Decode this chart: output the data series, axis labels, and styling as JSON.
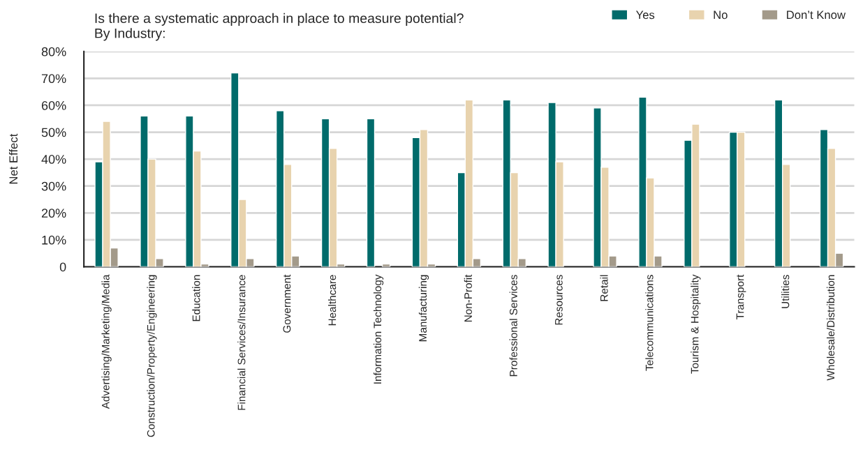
{
  "chart_data": {
    "type": "bar",
    "title": "Is there a systematic approach in place to measure potential?",
    "subtitle": "By Industry:",
    "ylabel": "Net Effect",
    "categories": [
      "Advertising/Marketing/Media",
      "Construction/Property/Engineering",
      "Education",
      "Financial Services/Insurance",
      "Government",
      "Healthcare",
      "Information Technology",
      "Manufacturing",
      "Non-Profit",
      "Professional Services",
      "Resources",
      "Retail",
      "Telecommunications",
      "Tourism & Hospitality",
      "Transport",
      "Utilities",
      "Wholesale/Distribution"
    ],
    "series": [
      {
        "name": "Yes",
        "color": "#006b6b",
        "values": [
          39,
          56,
          56,
          72,
          58,
          55,
          55,
          48,
          35,
          62,
          61,
          59,
          63,
          47,
          50,
          62,
          51
        ]
      },
      {
        "name": "No",
        "color": "#e8d3ae",
        "values": [
          54,
          40,
          43,
          25,
          38,
          44,
          null,
          51,
          62,
          35,
          39,
          37,
          33,
          53,
          50,
          38,
          44
        ]
      },
      {
        "name": "Don’t Know",
        "color": "#a39a8a",
        "values": [
          7,
          3,
          1,
          3,
          4,
          1,
          1,
          1,
          3,
          3,
          null,
          4,
          4,
          null,
          null,
          null,
          5
        ]
      }
    ],
    "ylim": [
      0,
      80
    ],
    "yticks": [
      {
        "value": 0,
        "label": "0"
      },
      {
        "value": 10,
        "label": "10%"
      },
      {
        "value": 20,
        "label": "20%"
      },
      {
        "value": 30,
        "label": "30%"
      },
      {
        "value": 40,
        "label": "40%"
      },
      {
        "value": 50,
        "label": "50%"
      },
      {
        "value": 60,
        "label": "60%"
      },
      {
        "value": 70,
        "label": "70%"
      },
      {
        "value": 80,
        "label": "80%"
      }
    ],
    "grid": "y",
    "legend": "top right"
  }
}
